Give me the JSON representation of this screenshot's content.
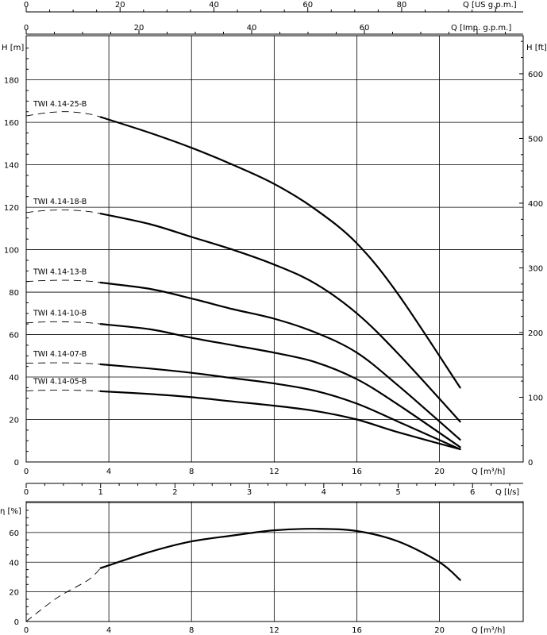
{
  "chart_data": [
    {
      "type": "line",
      "name": "head",
      "axes": {
        "x": {
          "label": "Q [m³/h]",
          "range": [
            0,
            24
          ],
          "ticks": [
            0,
            4,
            8,
            12,
            16,
            20
          ]
        },
        "y_left": {
          "label": "H [m]",
          "range": [
            0,
            200
          ],
          "ticks": [
            0,
            20,
            40,
            60,
            80,
            100,
            120,
            140,
            160,
            180
          ]
        },
        "y_right": {
          "label": "H [ft]",
          "range_ft": [
            0,
            656.17
          ],
          "ticks": [
            0,
            100,
            200,
            300,
            400,
            500,
            600
          ]
        },
        "x_top_us": {
          "label": "Q [US g.p.m.]",
          "ticks": [
            0,
            20,
            40,
            60,
            80
          ]
        },
        "x_top_imp": {
          "label": "Q [Imp. g.p.m.]",
          "ticks": [
            0,
            20,
            40,
            60
          ]
        },
        "x_bottom_ls": {
          "label": "Q [l/s]",
          "ticks": [
            0,
            1,
            2,
            3,
            4,
            5,
            6
          ]
        }
      },
      "grid": true,
      "series": [
        {
          "name": "TWI 4.14-25-B",
          "dashed": [
            [
              0,
              163
            ],
            [
              1,
              164.5
            ],
            [
              2,
              165
            ],
            [
              3,
              164
            ],
            [
              3.6,
              162.5
            ]
          ],
          "points": [
            [
              3.6,
              162.5
            ],
            [
              6,
              155
            ],
            [
              8,
              148
            ],
            [
              10,
              140
            ],
            [
              12,
              131
            ],
            [
              14,
              119
            ],
            [
              16,
              103
            ],
            [
              18,
              79
            ],
            [
              21,
              35
            ]
          ]
        },
        {
          "name": "TWI 4.14-18-B",
          "dashed": [
            [
              0,
              117.5
            ],
            [
              1,
              118.5
            ],
            [
              2,
              118.7
            ],
            [
              3,
              118
            ],
            [
              3.6,
              117
            ]
          ],
          "points": [
            [
              3.6,
              117
            ],
            [
              6,
              112
            ],
            [
              8,
              106
            ],
            [
              10,
              100
            ],
            [
              12,
              93
            ],
            [
              14,
              84
            ],
            [
              16,
              70
            ],
            [
              18,
              51
            ],
            [
              21,
              19
            ]
          ]
        },
        {
          "name": "TWI 4.14-13-B",
          "dashed": [
            [
              0,
              85
            ],
            [
              1,
              85.5
            ],
            [
              2,
              85.6
            ],
            [
              3,
              85.2
            ],
            [
              3.6,
              84.5
            ]
          ],
          "points": [
            [
              3.6,
              84.5
            ],
            [
              6,
              81.5
            ],
            [
              8,
              77
            ],
            [
              10,
              72
            ],
            [
              12,
              67.5
            ],
            [
              14,
              61
            ],
            [
              16,
              51.5
            ],
            [
              18,
              36
            ],
            [
              21,
              10.5
            ]
          ]
        },
        {
          "name": "TWI 4.14-10-B",
          "dashed": [
            [
              0,
              65.5
            ],
            [
              1,
              66
            ],
            [
              2,
              66
            ],
            [
              3,
              65.6
            ],
            [
              3.6,
              65
            ]
          ],
          "points": [
            [
              3.6,
              65
            ],
            [
              6,
              62.5
            ],
            [
              8,
              58.5
            ],
            [
              10,
              55
            ],
            [
              12,
              51.5
            ],
            [
              14,
              47
            ],
            [
              16,
              39
            ],
            [
              18,
              27
            ],
            [
              21,
              7
            ]
          ]
        },
        {
          "name": "TWI 4.14-07-B",
          "dashed": [
            [
              0,
              46.5
            ],
            [
              1,
              46.7
            ],
            [
              2,
              46.7
            ],
            [
              3,
              46.4
            ],
            [
              3.6,
              46
            ]
          ],
          "points": [
            [
              3.6,
              46
            ],
            [
              6,
              44
            ],
            [
              8,
              42
            ],
            [
              10,
              39.5
            ],
            [
              12,
              37
            ],
            [
              14,
              33.5
            ],
            [
              16,
              27.5
            ],
            [
              18,
              19
            ],
            [
              21,
              6
            ]
          ]
        },
        {
          "name": "TWI 4.14-05-B",
          "dashed": [
            [
              0,
              33.5
            ],
            [
              1,
              33.8
            ],
            [
              2,
              33.8
            ],
            [
              3,
              33.6
            ],
            [
              3.6,
              33.3
            ]
          ],
          "points": [
            [
              3.6,
              33.3
            ],
            [
              6,
              32
            ],
            [
              8,
              30.5
            ],
            [
              10,
              28.5
            ],
            [
              12,
              26.5
            ],
            [
              14,
              24
            ],
            [
              16,
              20
            ],
            [
              18,
              14
            ],
            [
              21,
              6
            ]
          ]
        }
      ]
    },
    {
      "type": "line",
      "name": "efficiency",
      "axes": {
        "x": {
          "label": "Q [m³/h]",
          "range": [
            0,
            24
          ],
          "ticks": [
            0,
            4,
            8,
            12,
            16,
            20
          ]
        },
        "y_left": {
          "label": "η [%]",
          "range": [
            0,
            80
          ],
          "ticks": [
            0,
            20,
            40,
            60
          ]
        }
      },
      "grid": true,
      "series": [
        {
          "name": "",
          "dashed": [
            [
              0,
              0
            ],
            [
              1.5,
              16
            ],
            [
              3,
              28
            ],
            [
              3.6,
              36
            ]
          ],
          "points": [
            [
              3.6,
              36
            ],
            [
              6,
              47
            ],
            [
              8,
              54
            ],
            [
              10,
              58
            ],
            [
              12,
              61.5
            ],
            [
              14,
              62.5
            ],
            [
              16,
              61
            ],
            [
              18,
              54
            ],
            [
              20,
              40
            ],
            [
              21,
              28
            ]
          ]
        }
      ]
    }
  ]
}
